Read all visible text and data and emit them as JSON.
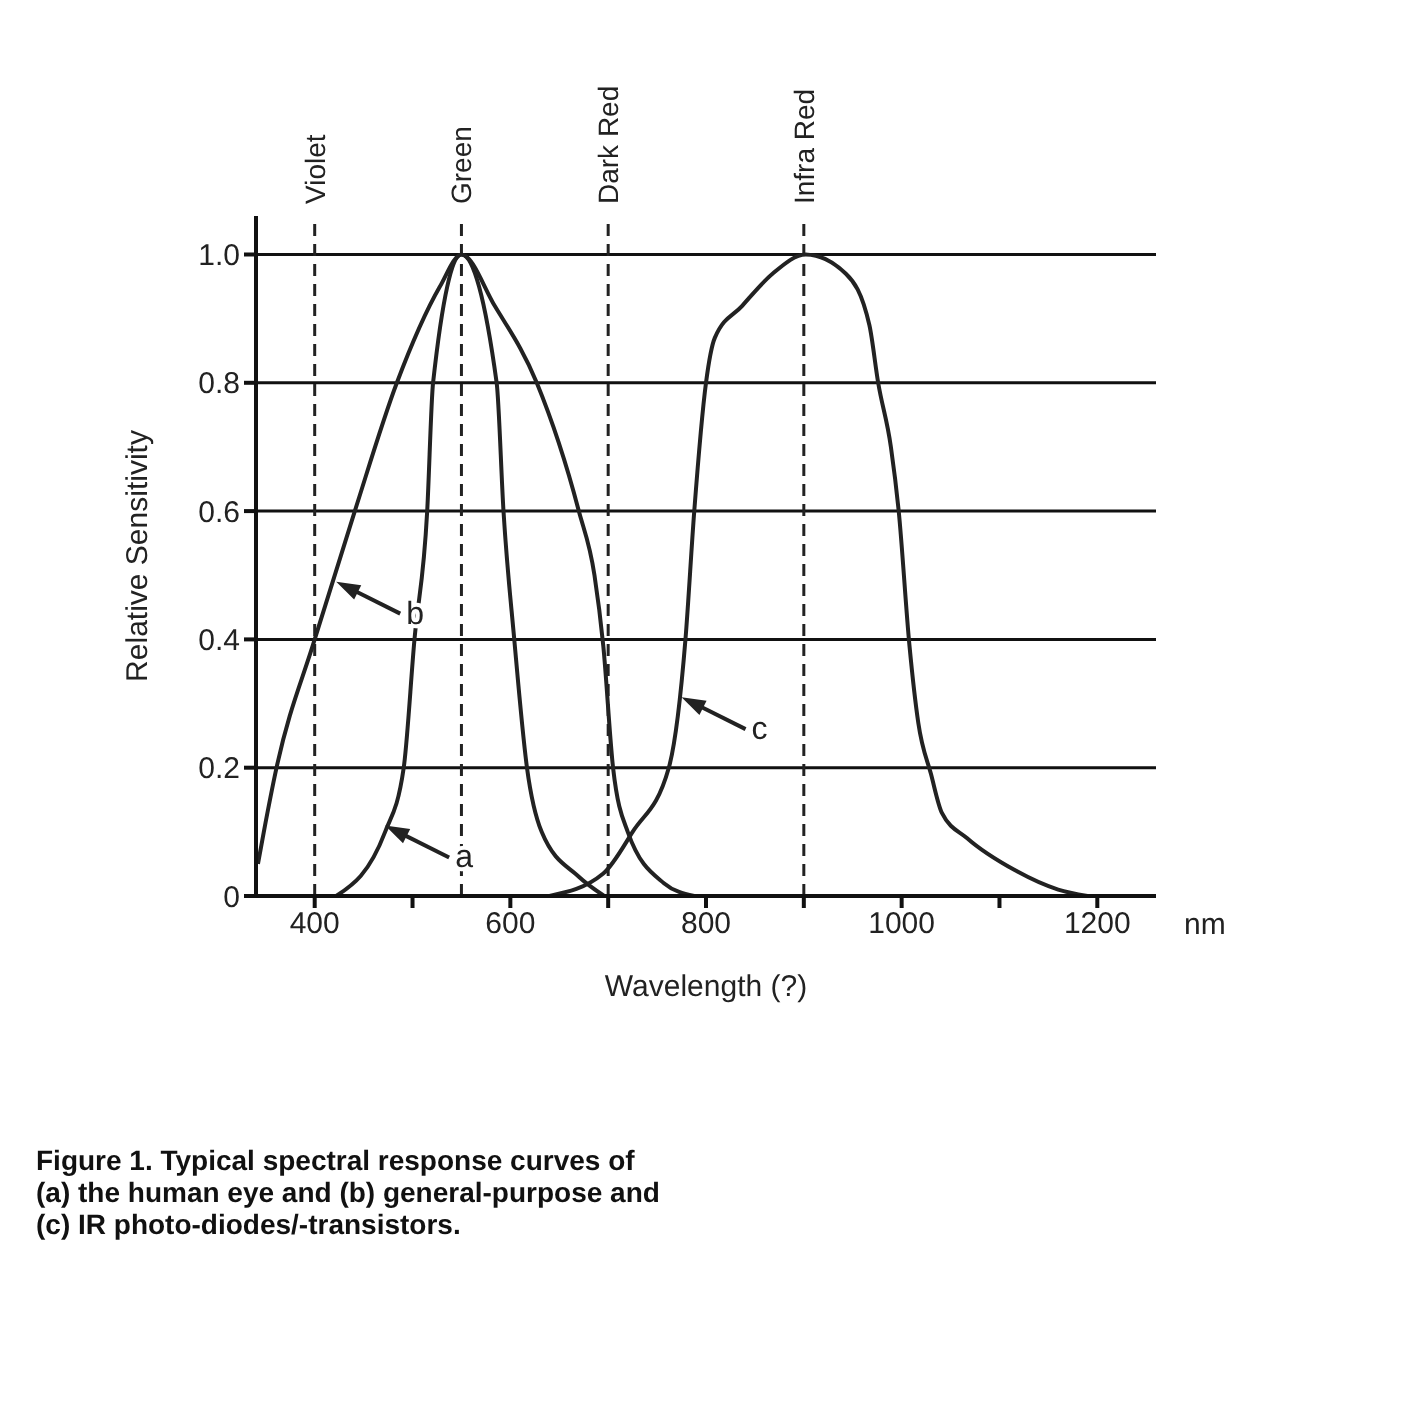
{
  "chart_data": {
    "type": "line",
    "xlabel": "Wavelength (?)",
    "ylabel": "Relative Sensitivity",
    "xlim": [
      340,
      1260
    ],
    "ylim": [
      0,
      1.06
    ],
    "xticks": [
      400,
      {
        "value": 500,
        "label": null
      },
      600,
      {
        "value": 700,
        "label": null
      },
      800,
      {
        "value": 900,
        "label": null
      },
      1000,
      {
        "value": 1100,
        "label": null
      },
      1200
    ],
    "yticks": [
      0,
      0.2,
      0.4,
      0.6,
      {
        "value": 0.8,
        "label": "0.8"
      },
      {
        "value": 1,
        "label": "1.0"
      }
    ],
    "grid": "y",
    "marker": "none",
    "line_style": "solid",
    "series": [
      {
        "color": "#222222",
        "x": [
          422,
          472,
          491,
          502,
          515,
          521,
          550,
          586,
          593,
          604,
          617,
          632,
          670,
          696
        ],
        "values": [
          0,
          0.1,
          0.2,
          0.4,
          0.6,
          0.8,
          1,
          0.8,
          0.6,
          0.4,
          0.2,
          0.1,
          0.03,
          0
        ]
      },
      {
        "color": "#222222",
        "x": [
          342,
          348,
          361,
          400,
          441,
          484,
          528,
          550,
          584,
          627,
          670,
          686,
          695,
          705,
          720,
          757,
          788
        ],
        "values": [
          0.05,
          0.1,
          0.2,
          0.4,
          0.6,
          0.8,
          0.95,
          1,
          0.92,
          0.8,
          0.6,
          0.5,
          0.39,
          0.2,
          0.1,
          0.02,
          0
        ]
      },
      {
        "color": "#222222",
        "x": [
          640,
          695,
          725,
          762,
          779,
          788,
          800,
          809,
          837,
          868,
          902,
          943,
          967,
          976,
          989,
          997,
          1008,
          1017,
          1030,
          1041,
          1067,
          1116,
          1160,
          1190
        ],
        "values": [
          0,
          0.035,
          0.1,
          0.2,
          0.4,
          0.6,
          0.8,
          0.87,
          0.92,
          0.97,
          1,
          0.97,
          0.89,
          0.8,
          0.7,
          0.6,
          0.39,
          0.27,
          0.19,
          0.13,
          0.09,
          0.04,
          0.01,
          0
        ]
      }
    ],
    "ref_lines": [
      {
        "axis": "x",
        "value": 400,
        "label": "Violet",
        "line_style": "dashed"
      },
      {
        "axis": "x",
        "value": 550,
        "label": "Green",
        "line_style": "dashed"
      },
      {
        "axis": "x",
        "value": 700,
        "label": "Dark Red",
        "line_style": "dashed"
      },
      {
        "axis": "x",
        "value": 900,
        "label": "Infra Red",
        "line_style": "dashed"
      }
    ],
    "annotations": [
      {
        "text": "a",
        "x": 472,
        "y": 0.11
      },
      {
        "text": "b",
        "x": 422,
        "y": 0.49
      },
      {
        "text": "c",
        "x": 775,
        "y": 0.31
      },
      "nm",
      "Figure 1. Typical spectral response curves of\n(a) the human eye and    (b) general-purpose and\n(c) IR photo-diodes/-transistors."
    ]
  }
}
